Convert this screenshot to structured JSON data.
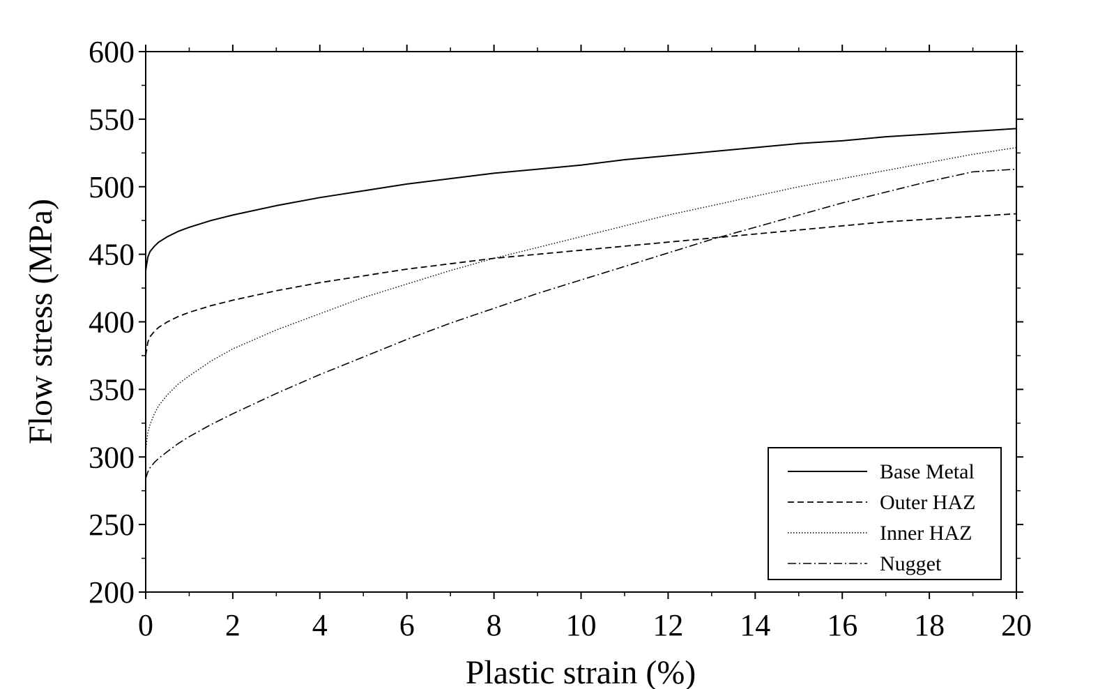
{
  "chart_data": {
    "type": "line",
    "title": "",
    "xlabel": "Plastic strain (%)",
    "ylabel": "Flow stress (MPa)",
    "xlim": [
      0,
      20
    ],
    "ylim": [
      200,
      600
    ],
    "xticks": [
      0,
      2,
      4,
      6,
      8,
      10,
      12,
      14,
      16,
      18,
      20
    ],
    "yticks": [
      200,
      250,
      300,
      350,
      400,
      450,
      500,
      550,
      600
    ],
    "x_tick_labels": [
      "0",
      "2",
      "4",
      "6",
      "8",
      "10",
      "12",
      "14",
      "16",
      "18",
      "20"
    ],
    "y_tick_labels": [
      "200",
      "250",
      "300",
      "350",
      "400",
      "450",
      "500",
      "550",
      "600"
    ],
    "grid": false,
    "legend_position": "bottom-right",
    "series": [
      {
        "name": "Base Metal",
        "dash": "solid",
        "x": [
          0,
          0.05,
          0.1,
          0.2,
          0.3,
          0.5,
          0.75,
          1,
          1.5,
          2,
          3,
          4,
          5,
          6,
          7,
          8,
          9,
          10,
          11,
          12,
          13,
          14,
          15,
          16,
          17,
          18,
          19,
          20
        ],
        "y": [
          438,
          448,
          452,
          456,
          459,
          463,
          467,
          470,
          475,
          479,
          486,
          492,
          497,
          502,
          506,
          510,
          513,
          516,
          520,
          523,
          526,
          529,
          532,
          534,
          537,
          539,
          541,
          543
        ]
      },
      {
        "name": "Outer HAZ",
        "dash": "dashed",
        "x": [
          0,
          0.05,
          0.1,
          0.2,
          0.3,
          0.5,
          0.75,
          1,
          1.5,
          2,
          3,
          4,
          5,
          6,
          7,
          8,
          9,
          10,
          11,
          12,
          13,
          14,
          15,
          16,
          17,
          18,
          19,
          20
        ],
        "y": [
          375,
          385,
          389,
          393,
          396,
          400,
          404,
          407,
          412,
          416,
          423,
          429,
          434,
          439,
          443,
          447,
          450,
          453,
          456,
          459,
          462,
          465,
          468,
          471,
          474,
          476,
          478,
          480
        ]
      },
      {
        "name": "Inner HAZ",
        "dash": "dotted",
        "x": [
          0,
          0.05,
          0.1,
          0.2,
          0.3,
          0.5,
          0.75,
          1,
          1.5,
          2,
          3,
          4,
          5,
          6,
          7,
          8,
          9,
          10,
          11,
          12,
          13,
          14,
          15,
          16,
          17,
          18,
          19,
          20
        ],
        "y": [
          305,
          318,
          324,
          332,
          338,
          346,
          354,
          360,
          371,
          380,
          394,
          406,
          418,
          428,
          438,
          447,
          455,
          463,
          471,
          479,
          486,
          493,
          500,
          506,
          512,
          518,
          524,
          529
        ]
      },
      {
        "name": "Nugget",
        "dash": "dashdot",
        "x": [
          0,
          0.05,
          0.1,
          0.2,
          0.3,
          0.5,
          0.75,
          1,
          1.5,
          2,
          3,
          4,
          5,
          6,
          7,
          8,
          9,
          10,
          11,
          12,
          13,
          14,
          15,
          16,
          17,
          18,
          19,
          20
        ],
        "y": [
          284,
          289,
          292,
          296,
          299,
          304,
          310,
          315,
          324,
          332,
          347,
          361,
          374,
          387,
          399,
          410,
          421,
          431,
          441,
          451,
          461,
          470,
          479,
          488,
          496,
          504,
          511,
          513
        ]
      }
    ]
  }
}
